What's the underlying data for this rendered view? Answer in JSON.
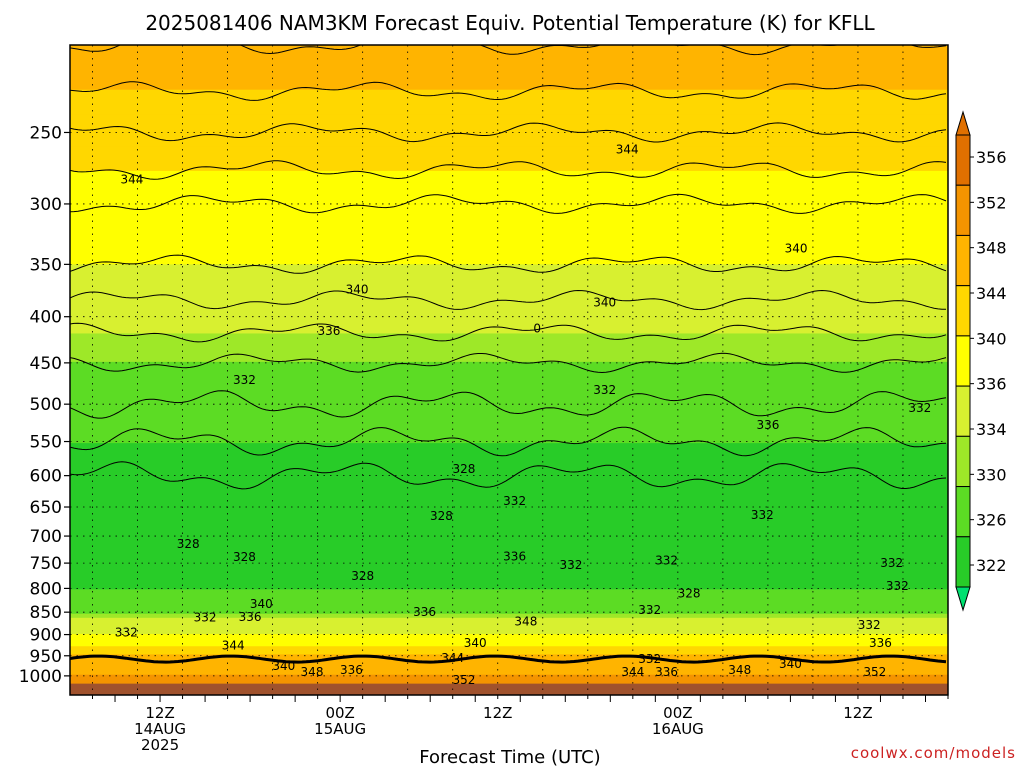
{
  "chart_data": {
    "type": "heatmap",
    "title": "2025081406 NAM3KM Forecast Equiv. Potential Temperature (K) for KFLL",
    "xlabel": "Forecast Time (UTC)",
    "ylabel": "",
    "y_scale": "log-pressure",
    "ylim_hPa": [
      1050,
      200
    ],
    "y_ticks": [
      250,
      300,
      350,
      400,
      450,
      500,
      550,
      600,
      650,
      700,
      750,
      800,
      850,
      900,
      950,
      1000
    ],
    "xlim_hours": [
      6,
      84
    ],
    "x_ticks": [
      {
        "hour": 14,
        "lines": [
          "12Z",
          "14AUG",
          "2025"
        ]
      },
      {
        "hour": 30,
        "lines": [
          "00Z",
          "15AUG"
        ]
      },
      {
        "hour": 44,
        "lines": [
          "12Z"
        ]
      },
      {
        "hour": 60,
        "lines": [
          "00Z",
          "16AUG"
        ]
      },
      {
        "hour": 76,
        "lines": [
          "12Z"
        ]
      }
    ],
    "grid": true,
    "colorbar": {
      "placement": "right",
      "ticks": [
        356,
        352,
        348,
        344,
        340,
        336,
        334,
        330,
        326,
        322
      ],
      "colors": [
        "#e07000",
        "#f49400",
        "#ffb400",
        "#ffd700",
        "#ffff00",
        "#d8f030",
        "#9ee828",
        "#5cdc24",
        "#28cc28",
        "#00e070"
      ]
    },
    "profile_theta_e_K": [
      {
        "p": 1000,
        "value": 352
      },
      {
        "p": 950,
        "value": 348
      },
      {
        "p": 900,
        "value": 340
      },
      {
        "p": 850,
        "value": 334
      },
      {
        "p": 800,
        "value": 330
      },
      {
        "p": 700,
        "value": 328
      },
      {
        "p": 600,
        "value": 328
      },
      {
        "p": 500,
        "value": 332
      },
      {
        "p": 450,
        "value": 334
      },
      {
        "p": 400,
        "value": 337
      },
      {
        "p": 350,
        "value": 340
      },
      {
        "p": 300,
        "value": 342
      },
      {
        "p": 250,
        "value": 346
      },
      {
        "p": 200,
        "value": 350
      }
    ],
    "contour_labels": [
      {
        "text": "344",
        "hour": 11.5,
        "p": 282
      },
      {
        "text": "344",
        "hour": 55.5,
        "p": 261
      },
      {
        "text": "340",
        "hour": 31.5,
        "p": 373
      },
      {
        "text": "340",
        "hour": 53.5,
        "p": 386
      },
      {
        "text": "340",
        "hour": 70.5,
        "p": 336
      },
      {
        "text": "336",
        "hour": 29,
        "p": 415
      },
      {
        "text": "336",
        "hour": 68,
        "p": 527
      },
      {
        "text": "332",
        "hour": 21.5,
        "p": 470
      },
      {
        "text": "332",
        "hour": 53.5,
        "p": 482
      },
      {
        "text": "332",
        "hour": 81.5,
        "p": 505
      },
      {
        "text": "328",
        "hour": 41,
        "p": 590
      },
      {
        "text": "328",
        "hour": 39,
        "p": 665
      },
      {
        "text": "332",
        "hour": 45.5,
        "p": 640
      },
      {
        "text": "332",
        "hour": 67.5,
        "p": 663
      },
      {
        "text": "328",
        "hour": 16.5,
        "p": 714
      },
      {
        "text": "328",
        "hour": 21.5,
        "p": 738
      },
      {
        "text": "336",
        "hour": 45.5,
        "p": 737
      },
      {
        "text": "332",
        "hour": 50.5,
        "p": 754
      },
      {
        "text": "332",
        "hour": 59,
        "p": 745
      },
      {
        "text": "332",
        "hour": 79,
        "p": 750
      },
      {
        "text": "328",
        "hour": 32,
        "p": 775
      },
      {
        "text": "328",
        "hour": 61,
        "p": 810
      },
      {
        "text": "332",
        "hour": 79.5,
        "p": 795
      },
      {
        "text": "340",
        "hour": 23,
        "p": 832
      },
      {
        "text": "336",
        "hour": 22,
        "p": 860
      },
      {
        "text": "332",
        "hour": 18,
        "p": 862
      },
      {
        "text": "336",
        "hour": 37.5,
        "p": 850
      },
      {
        "text": "332",
        "hour": 57.5,
        "p": 845
      },
      {
        "text": "348",
        "hour": 46.5,
        "p": 870
      },
      {
        "text": "332",
        "hour": 77,
        "p": 878
      },
      {
        "text": "332",
        "hour": 11,
        "p": 895
      },
      {
        "text": "344",
        "hour": 20.5,
        "p": 925
      },
      {
        "text": "340",
        "hour": 42,
        "p": 920
      },
      {
        "text": "344",
        "hour": 40,
        "p": 955
      },
      {
        "text": "336",
        "hour": 78,
        "p": 920
      },
      {
        "text": "340",
        "hour": 25,
        "p": 975
      },
      {
        "text": "348",
        "hour": 27.5,
        "p": 990
      },
      {
        "text": "336",
        "hour": 31,
        "p": 985
      },
      {
        "text": "332",
        "hour": 57.5,
        "p": 958
      },
      {
        "text": "344",
        "hour": 56,
        "p": 990
      },
      {
        "text": "336",
        "hour": 59,
        "p": 990
      },
      {
        "text": "348",
        "hour": 65.5,
        "p": 985
      },
      {
        "text": "340",
        "hour": 70,
        "p": 970
      },
      {
        "text": "352",
        "hour": 77.5,
        "p": 990
      },
      {
        "text": "352",
        "hour": 41,
        "p": 1010
      },
      {
        "text": "0",
        "hour": 47.5,
        "p": 412
      }
    ]
  },
  "credit": "coolwx.com/models"
}
